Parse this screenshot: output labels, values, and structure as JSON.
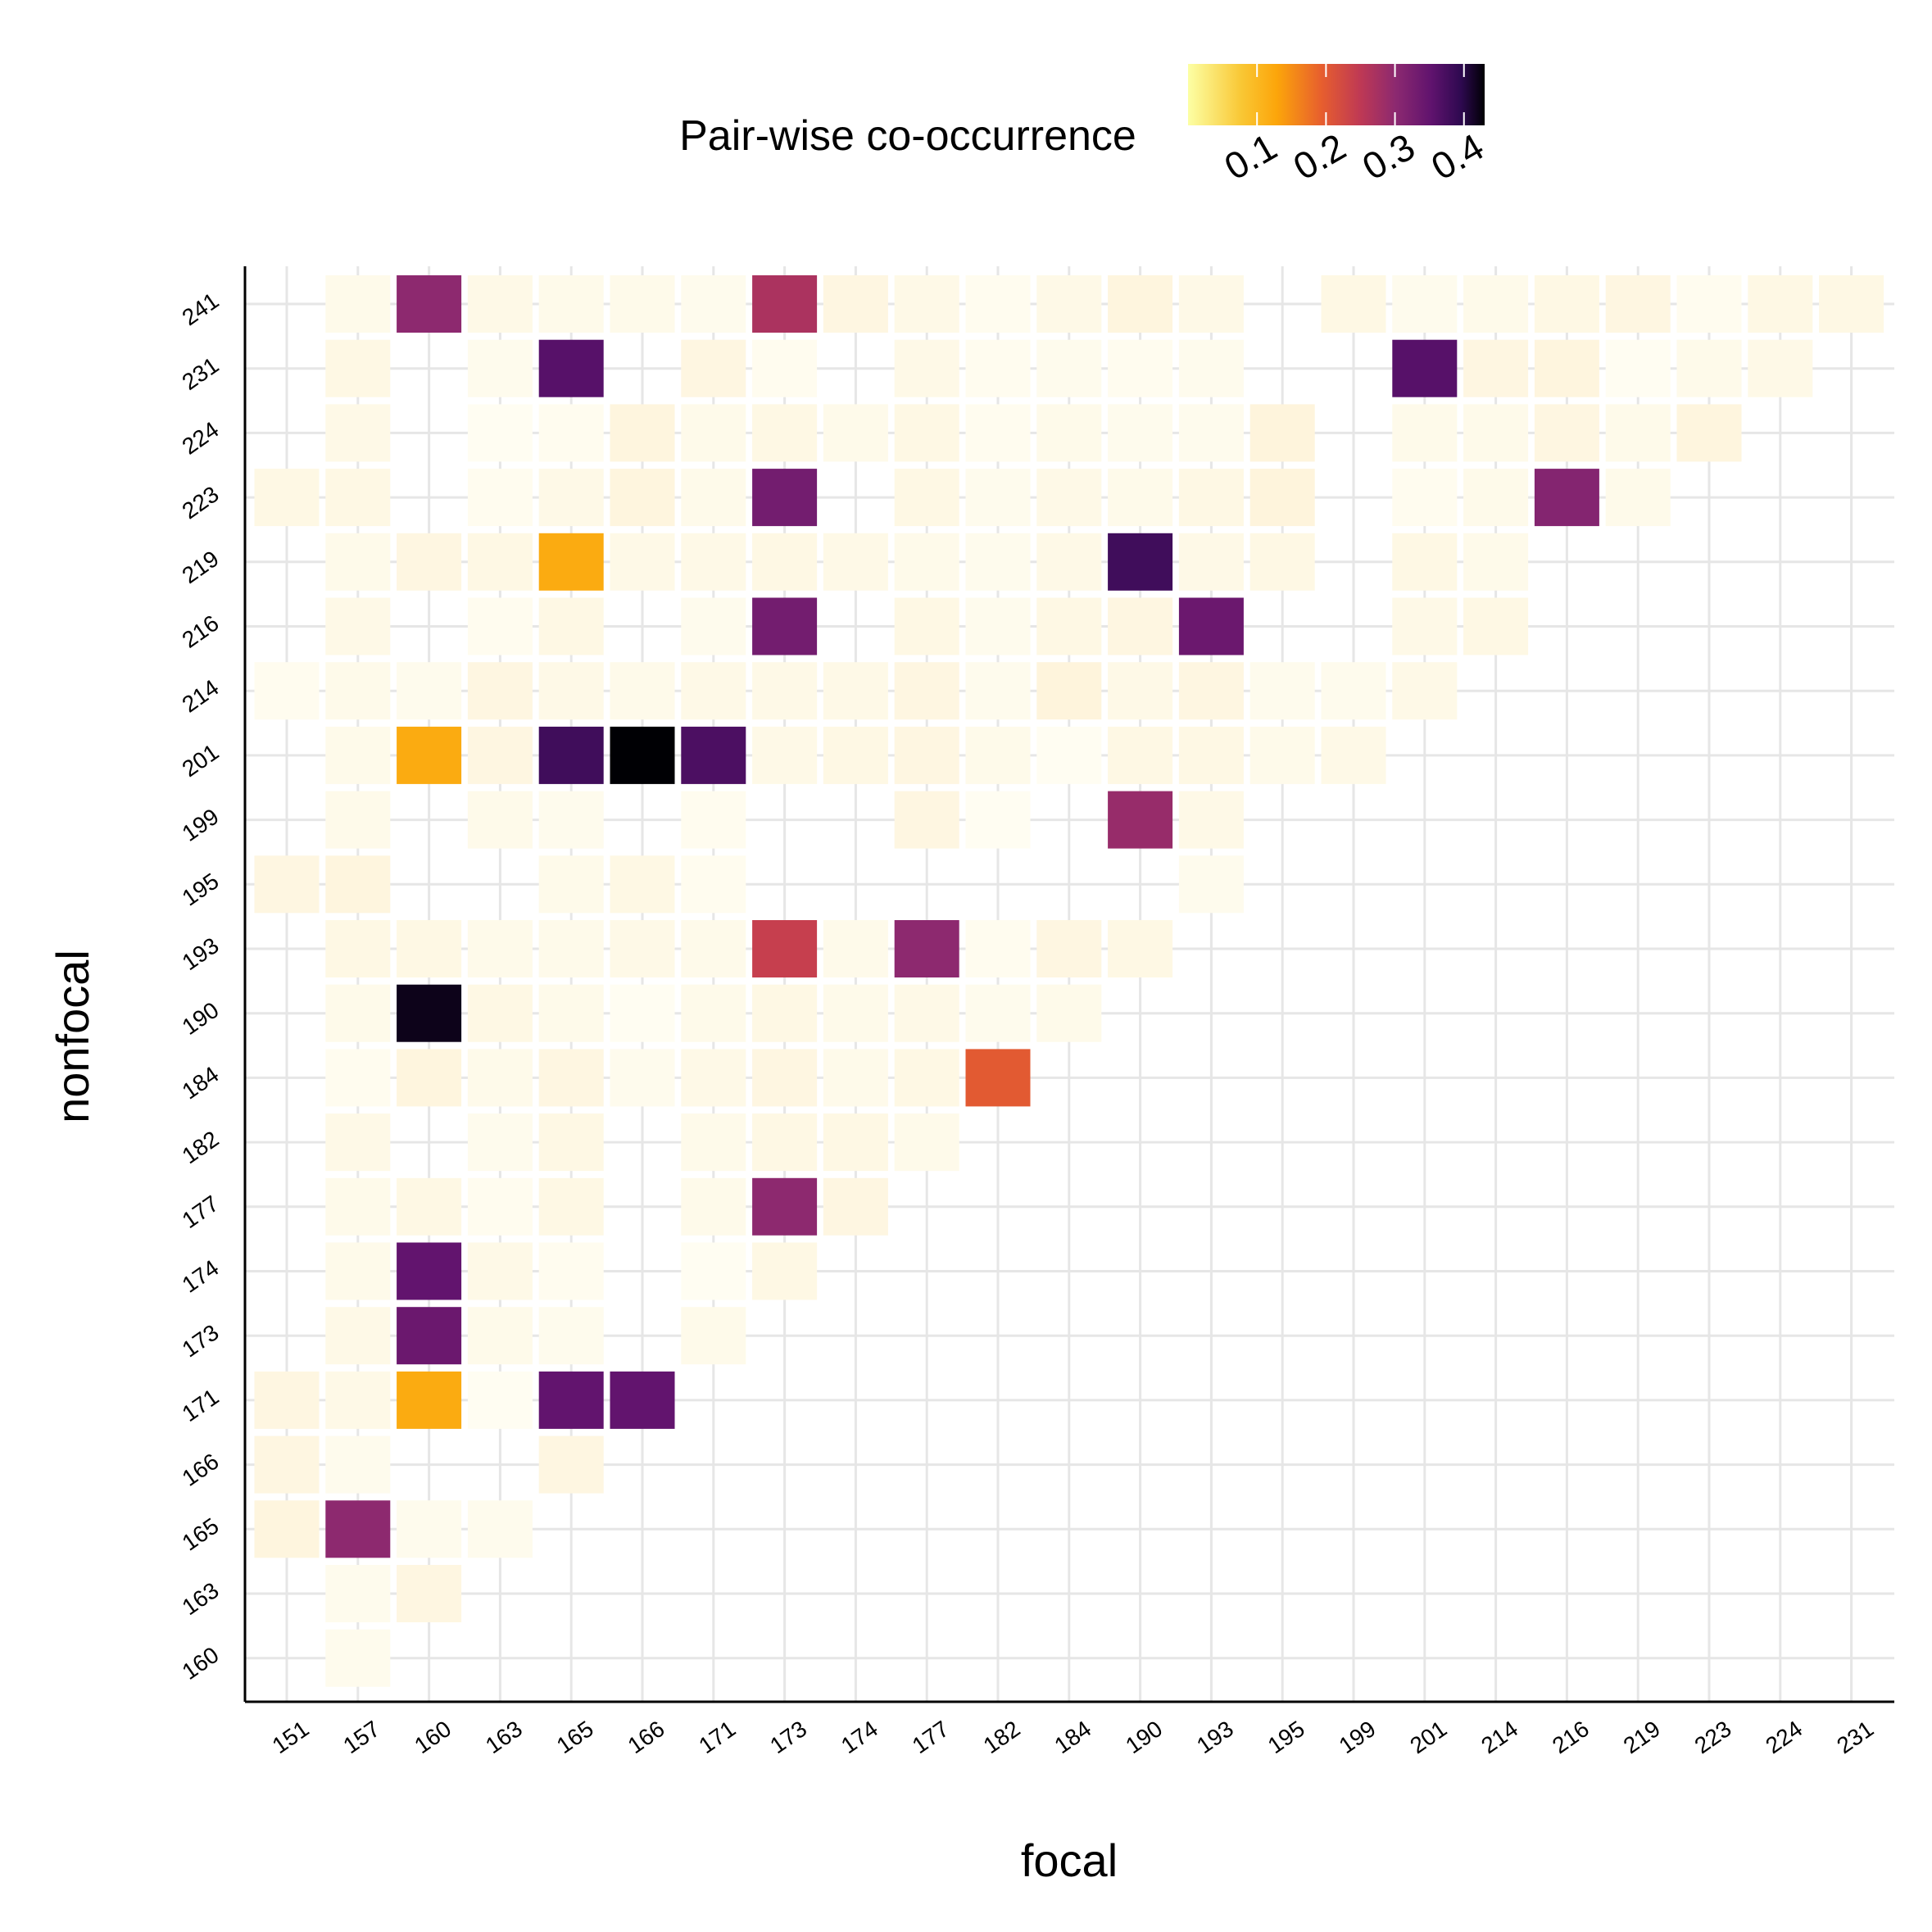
{
  "chart_data": {
    "type": "heatmap",
    "xlabel": "focal",
    "ylabel": "nonfocal",
    "legend": {
      "title": "Pair-wise co-occurrence",
      "position": "top",
      "ticks": [
        "0.1",
        "0.2",
        "0.3",
        "0.4"
      ],
      "range": [
        0,
        0.43
      ]
    },
    "grid": true,
    "x_categories": [
      "151",
      "157",
      "160",
      "163",
      "165",
      "166",
      "171",
      "173",
      "174",
      "177",
      "182",
      "184",
      "190",
      "193",
      "195",
      "199",
      "201",
      "214",
      "216",
      "219",
      "223",
      "224",
      "231"
    ],
    "y_categories": [
      "160",
      "163",
      "165",
      "166",
      "171",
      "173",
      "174",
      "177",
      "182",
      "184",
      "190",
      "193",
      "195",
      "199",
      "201",
      "214",
      "216",
      "219",
      "223",
      "224",
      "231",
      "241"
    ],
    "cells": {
      "160": {
        "157": 0.04
      },
      "163": {
        "157": 0.04,
        "160": 0.08
      },
      "165": {
        "151": 0.09,
        "157": 0.3,
        "160": 0.04,
        "163": 0.04
      },
      "166": {
        "151": 0.08,
        "157": 0.04,
        "165": 0.08
      },
      "171": {
        "151": 0.08,
        "157": 0.06,
        "160": 0.12,
        "163": 0.02,
        "165": 0.35,
        "166": 0.35
      },
      "173": {
        "157": 0.06,
        "160": 0.34,
        "163": 0.05,
        "165": 0.04,
        "171": 0.05
      },
      "174": {
        "157": 0.05,
        "160": 0.35,
        "163": 0.06,
        "165": 0.03,
        "171": 0.02,
        "173": 0.07
      },
      "177": {
        "157": 0.05,
        "160": 0.07,
        "163": 0.03,
        "165": 0.07,
        "171": 0.05,
        "173": 0.3,
        "174": 0.08
      },
      "182": {
        "157": 0.06,
        "163": 0.04,
        "165": 0.07,
        "171": 0.05,
        "173": 0.07,
        "174": 0.07,
        "177": 0.05
      },
      "184": {
        "157": 0.03,
        "160": 0.09,
        "163": 0.05,
        "165": 0.08,
        "166": 0.04,
        "171": 0.06,
        "173": 0.08,
        "174": 0.05,
        "177": 0.07,
        "182": 0.2
      },
      "190": {
        "157": 0.05,
        "160": 0.42,
        "163": 0.07,
        "165": 0.05,
        "166": 0.02,
        "171": 0.05,
        "173": 0.07,
        "174": 0.05,
        "177": 0.06,
        "182": 0.04,
        "184": 0.05
      },
      "193": {
        "157": 0.07,
        "160": 0.07,
        "163": 0.05,
        "165": 0.05,
        "166": 0.06,
        "171": 0.05,
        "173": 0.24,
        "174": 0.05,
        "177": 0.3,
        "182": 0.03,
        "184": 0.08,
        "190": 0.07
      },
      "195": {
        "151": 0.08,
        "157": 0.09,
        "165": 0.05,
        "166": 0.07,
        "171": 0.03,
        "193": 0.04
      },
      "199": {
        "157": 0.05,
        "163": 0.05,
        "165": 0.04,
        "171": 0.03,
        "177": 0.08,
        "182": 0.02,
        "190": 0.29,
        "193": 0.06
      },
      "201": {
        "157": 0.05,
        "160": 0.12,
        "163": 0.08,
        "165": 0.38,
        "166": 0.43,
        "171": 0.37,
        "173": 0.06,
        "174": 0.07,
        "177": 0.08,
        "182": 0.05,
        "184": 0.02,
        "190": 0.07,
        "193": 0.07,
        "195": 0.05,
        "199": 0.06
      },
      "214": {
        "151": 0.03,
        "157": 0.05,
        "160": 0.04,
        "163": 0.08,
        "165": 0.06,
        "166": 0.05,
        "171": 0.06,
        "173": 0.06,
        "174": 0.06,
        "177": 0.08,
        "182": 0.04,
        "184": 0.1,
        "190": 0.06,
        "193": 0.08,
        "195": 0.04,
        "199": 0.04,
        "201": 0.06
      },
      "216": {
        "157": 0.06,
        "163": 0.03,
        "165": 0.07,
        "171": 0.04,
        "173": 0.33,
        "177": 0.07,
        "182": 0.04,
        "184": 0.07,
        "190": 0.08,
        "193": 0.34,
        "201": 0.06,
        "214": 0.07
      },
      "219": {
        "157": 0.05,
        "160": 0.08,
        "163": 0.07,
        "165": 0.12,
        "166": 0.06,
        "171": 0.06,
        "173": 0.07,
        "174": 0.06,
        "177": 0.05,
        "182": 0.04,
        "184": 0.06,
        "190": 0.38,
        "193": 0.06,
        "195": 0.07,
        "201": 0.07,
        "214": 0.05
      },
      "223": {
        "151": 0.07,
        "157": 0.07,
        "163": 0.03,
        "165": 0.06,
        "166": 0.09,
        "171": 0.05,
        "173": 0.33,
        "177": 0.07,
        "182": 0.04,
        "184": 0.06,
        "190": 0.05,
        "193": 0.07,
        "195": 0.1,
        "201": 0.03,
        "214": 0.05,
        "216": 0.31,
        "219": 0.05
      },
      "224": {
        "157": 0.06,
        "163": 0.02,
        "165": 0.03,
        "166": 0.09,
        "171": 0.05,
        "173": 0.07,
        "174": 0.05,
        "177": 0.07,
        "182": 0.03,
        "184": 0.05,
        "190": 0.04,
        "193": 0.04,
        "195": 0.1,
        "201": 0.05,
        "214": 0.05,
        "216": 0.08,
        "219": 0.05,
        "223": 0.09
      },
      "231": {
        "157": 0.07,
        "163": 0.04,
        "165": 0.36,
        "171": 0.08,
        "173": 0.03,
        "177": 0.06,
        "182": 0.03,
        "184": 0.04,
        "190": 0.03,
        "193": 0.04,
        "201": 0.36,
        "214": 0.08,
        "216": 0.09,
        "219": 0.02,
        "223": 0.05,
        "224": 0.06
      },
      "241": {
        "157": 0.05,
        "160": 0.3,
        "163": 0.06,
        "165": 0.05,
        "166": 0.05,
        "171": 0.04,
        "173": 0.27,
        "174": 0.08,
        "177": 0.06,
        "182": 0.03,
        "184": 0.06,
        "190": 0.09,
        "193": 0.06,
        "199": 0.07,
        "201": 0.04,
        "214": 0.05,
        "216": 0.07,
        "219": 0.08,
        "223": 0.03,
        "224": 0.07,
        "231": 0.07
      }
    }
  }
}
